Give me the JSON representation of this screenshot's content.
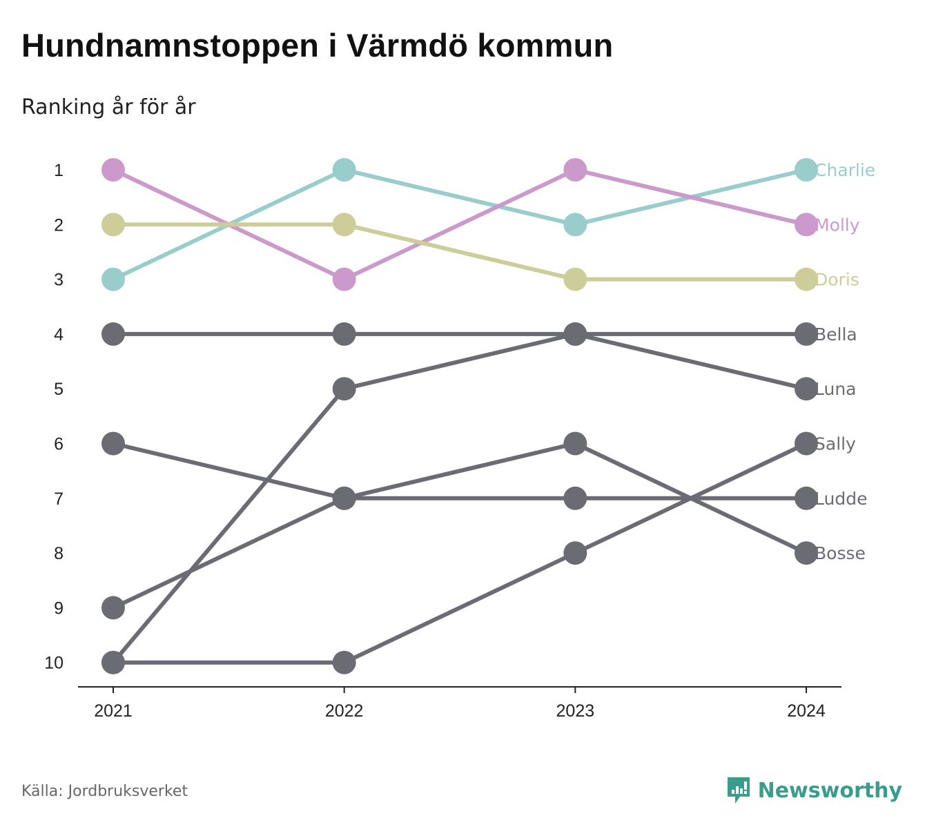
{
  "title": "Hundnamnstoppen i Värmdö kommun",
  "subtitle": "Ranking år för år",
  "source": "Källa: Jordbruksverket",
  "brand": "Newsworthy",
  "colors": {
    "Charlie": "#99cdcc",
    "Molly": "#cc99cc",
    "Doris": "#cdcd99",
    "other": "#6b6b73",
    "brand": "#3a9c8c"
  },
  "chart_data": {
    "type": "line",
    "x": [
      "2021",
      "2022",
      "2023",
      "2024"
    ],
    "ylim": [
      10,
      1
    ],
    "y_ticks": [
      "1",
      "2",
      "3",
      "4",
      "5",
      "6",
      "7",
      "8",
      "9",
      "10"
    ],
    "grid": false,
    "series": [
      {
        "name": "Charlie",
        "values": [
          3,
          1,
          2,
          1
        ]
      },
      {
        "name": "Molly",
        "values": [
          1,
          3,
          1,
          2
        ]
      },
      {
        "name": "Doris",
        "values": [
          2,
          2,
          3,
          3
        ]
      },
      {
        "name": "Bella",
        "values": [
          4,
          4,
          4,
          4
        ]
      },
      {
        "name": "Luna",
        "values": [
          10,
          5,
          4,
          5
        ]
      },
      {
        "name": "Sally",
        "values": [
          10,
          10,
          8,
          6
        ]
      },
      {
        "name": "Ludde",
        "values": [
          6,
          7,
          7,
          7
        ]
      },
      {
        "name": "Bosse",
        "values": [
          9,
          7,
          6,
          8
        ]
      }
    ]
  }
}
